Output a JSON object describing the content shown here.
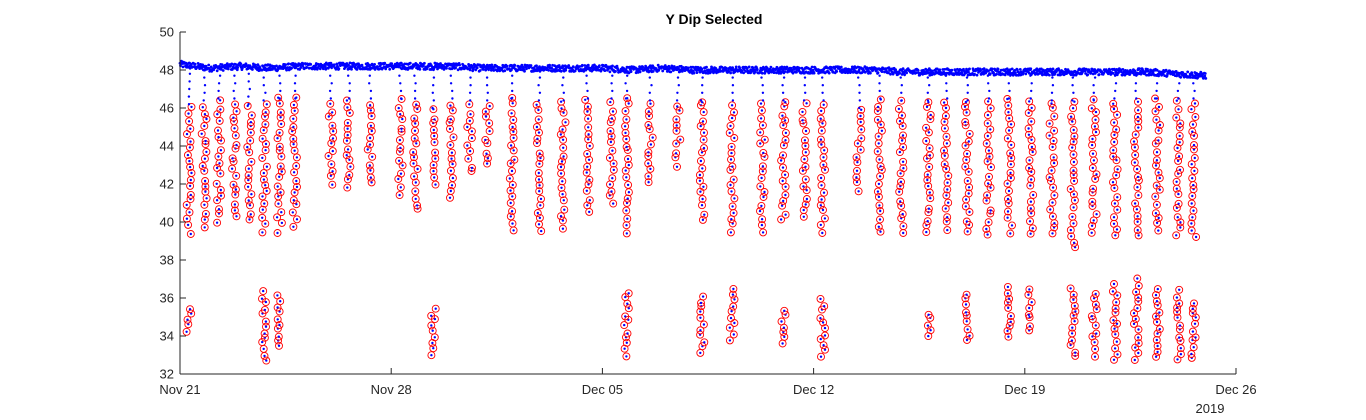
{
  "chart_data": {
    "type": "scatter",
    "title": "Y Dip Selected",
    "xlabel": "",
    "ylabel": "",
    "x_start": "2019-11-21",
    "x_end": "2019-12-26",
    "xlim": [
      "2019-11-21",
      "2019-12-26"
    ],
    "ylim": [
      32,
      50
    ],
    "grid": false,
    "x_ticks": [
      {
        "date": "2019-11-21",
        "label": "Nov 21"
      },
      {
        "date": "2019-11-28",
        "label": "Nov 28"
      },
      {
        "date": "2019-12-05",
        "label": "Dec 05"
      },
      {
        "date": "2019-12-12",
        "label": "Dec 12"
      },
      {
        "date": "2019-12-19",
        "label": "Dec 19"
      },
      {
        "date": "2019-12-26",
        "label": "Dec 26"
      }
    ],
    "x_secondary_label": "2019",
    "y_ticks": [
      32,
      34,
      36,
      38,
      40,
      42,
      44,
      46,
      48,
      50
    ],
    "series": [
      {
        "marker": "point",
        "color": "#0000ff",
        "baseline_points": [
          {
            "x": "2019-11-21",
            "y": 48.3
          },
          {
            "x": "2019-11-22",
            "y": 48.1
          },
          {
            "x": "2019-11-23",
            "y": 48.2
          },
          {
            "x": "2019-11-24",
            "y": 48.1
          },
          {
            "x": "2019-11-25",
            "y": 48.2
          },
          {
            "x": "2019-11-26",
            "y": 48.2
          },
          {
            "x": "2019-11-27",
            "y": 48.2
          },
          {
            "x": "2019-11-28",
            "y": 48.2
          },
          {
            "x": "2019-11-29",
            "y": 48.2
          },
          {
            "x": "2019-11-30",
            "y": 48.2
          },
          {
            "x": "2019-12-01",
            "y": 48.1
          },
          {
            "x": "2019-12-02",
            "y": 48.1
          },
          {
            "x": "2019-12-03",
            "y": 48.1
          },
          {
            "x": "2019-12-04",
            "y": 48.1
          },
          {
            "x": "2019-12-05",
            "y": 48.1
          },
          {
            "x": "2019-12-06",
            "y": 48.0
          },
          {
            "x": "2019-12-07",
            "y": 48.1
          },
          {
            "x": "2019-12-08",
            "y": 48.0
          },
          {
            "x": "2019-12-09",
            "y": 48.0
          },
          {
            "x": "2019-12-10",
            "y": 48.0
          },
          {
            "x": "2019-12-11",
            "y": 48.0
          },
          {
            "x": "2019-12-12",
            "y": 48.0
          },
          {
            "x": "2019-12-13",
            "y": 48.0
          },
          {
            "x": "2019-12-14",
            "y": 48.0
          },
          {
            "x": "2019-12-15",
            "y": 47.9
          },
          {
            "x": "2019-12-16",
            "y": 47.9
          },
          {
            "x": "2019-12-17",
            "y": 47.9
          },
          {
            "x": "2019-12-18",
            "y": 47.9
          },
          {
            "x": "2019-12-19",
            "y": 47.9
          },
          {
            "x": "2019-12-20",
            "y": 47.9
          },
          {
            "x": "2019-12-21",
            "y": 47.9
          },
          {
            "x": "2019-12-22",
            "y": 47.9
          },
          {
            "x": "2019-12-23",
            "y": 47.9
          },
          {
            "x": "2019-12-24",
            "y": 47.8
          },
          {
            "x": "2019-12-25",
            "y": 47.7
          }
        ]
      },
      {
        "marker": "open-circle",
        "color": "#ff0000",
        "dip_columns": [
          {
            "x": "2019-11-21.3",
            "y_min": 39.4,
            "y_max": 46.2,
            "low_min": 34.3,
            "low_max": 35.7
          },
          {
            "x": "2019-11-21.8",
            "y_min": 39.8,
            "y_max": 46.4
          },
          {
            "x": "2019-11-22.3",
            "y_min": 40.0,
            "y_max": 46.5
          },
          {
            "x": "2019-11-22.8",
            "y_min": 40.3,
            "y_max": 46.5
          },
          {
            "x": "2019-11-23.3",
            "y_min": 40.1,
            "y_max": 46.2
          },
          {
            "x": "2019-11-23.8",
            "y_min": 39.5,
            "y_max": 46.4,
            "low_min": 32.7,
            "low_max": 36.4
          },
          {
            "x": "2019-11-24.3",
            "y_min": 39.5,
            "y_max": 46.5,
            "low_min": 33.4,
            "low_max": 36.2
          },
          {
            "x": "2019-11-24.8",
            "y_min": 39.8,
            "y_max": 46.5
          },
          {
            "x": "2019-11-26.0",
            "y_min": 42.0,
            "y_max": 46.5
          },
          {
            "x": "2019-11-26.6",
            "y_min": 41.8,
            "y_max": 46.5
          },
          {
            "x": "2019-11-27.3",
            "y_min": 42.0,
            "y_max": 46.5
          },
          {
            "x": "2019-11-28.3",
            "y_min": 41.5,
            "y_max": 46.5
          },
          {
            "x": "2019-11-28.8",
            "y_min": 40.6,
            "y_max": 46.5
          },
          {
            "x": "2019-11-29.4",
            "y_min": 42.0,
            "y_max": 46.0,
            "low_min": 33.0,
            "low_max": 35.6
          },
          {
            "x": "2019-11-30.0",
            "y_min": 41.3,
            "y_max": 46.5
          },
          {
            "x": "2019-11-30.6",
            "y_min": 42.6,
            "y_max": 46.4
          },
          {
            "x": "2019-12-01.2",
            "y_min": 43.0,
            "y_max": 46.4
          },
          {
            "x": "2019-12-02.0",
            "y_min": 39.5,
            "y_max": 46.5
          },
          {
            "x": "2019-12-02.9",
            "y_min": 39.5,
            "y_max": 46.4
          },
          {
            "x": "2019-12-03.7",
            "y_min": 39.7,
            "y_max": 46.4
          },
          {
            "x": "2019-12-04.5",
            "y_min": 40.5,
            "y_max": 46.5
          },
          {
            "x": "2019-12-05.3",
            "y_min": 41.0,
            "y_max": 46.5
          },
          {
            "x": "2019-12-05.8",
            "y_min": 39.5,
            "y_max": 46.5,
            "low_min": 33.0,
            "low_max": 36.3
          },
          {
            "x": "2019-12-06.6",
            "y_min": 42.0,
            "y_max": 46.4
          },
          {
            "x": "2019-12-07.5",
            "y_min": 43.0,
            "y_max": 46.4
          },
          {
            "x": "2019-12-08.3",
            "y_min": 40.1,
            "y_max": 46.4,
            "low_min": 33.1,
            "low_max": 36.2
          },
          {
            "x": "2019-12-09.3",
            "y_min": 39.5,
            "y_max": 46.4,
            "low_min": 33.8,
            "low_max": 36.5
          },
          {
            "x": "2019-12-10.3",
            "y_min": 39.5,
            "y_max": 46.4
          },
          {
            "x": "2019-12-11.0",
            "y_min": 40.1,
            "y_max": 46.4,
            "low_min": 33.6,
            "low_max": 35.5
          },
          {
            "x": "2019-12-11.7",
            "y_min": 40.2,
            "y_max": 46.4
          },
          {
            "x": "2019-12-12.3",
            "y_min": 39.5,
            "y_max": 46.4,
            "low_min": 32.9,
            "low_max": 35.9
          },
          {
            "x": "2019-12-13.5",
            "y_min": 41.7,
            "y_max": 46.0
          },
          {
            "x": "2019-12-14.2",
            "y_min": 39.5,
            "y_max": 46.5
          },
          {
            "x": "2019-12-14.9",
            "y_min": 39.4,
            "y_max": 46.4
          },
          {
            "x": "2019-12-15.8",
            "y_min": 39.4,
            "y_max": 46.4,
            "low_min": 34.0,
            "low_max": 35.3
          },
          {
            "x": "2019-12-16.4",
            "y_min": 39.6,
            "y_max": 46.5
          },
          {
            "x": "2019-12-17.1",
            "y_min": 39.4,
            "y_max": 46.4,
            "low_min": 33.8,
            "low_max": 36.3
          },
          {
            "x": "2019-12-17.8",
            "y_min": 39.3,
            "y_max": 46.5
          },
          {
            "x": "2019-12-18.5",
            "y_min": 39.5,
            "y_max": 46.5,
            "low_min": 33.9,
            "low_max": 36.7
          },
          {
            "x": "2019-12-19.2",
            "y_min": 39.4,
            "y_max": 46.5,
            "low_min": 34.3,
            "low_max": 36.4
          },
          {
            "x": "2019-12-19.9",
            "y_min": 39.3,
            "y_max": 46.4
          },
          {
            "x": "2019-12-20.6",
            "y_min": 38.6,
            "y_max": 46.4,
            "low_min": 32.9,
            "low_max": 36.7
          },
          {
            "x": "2019-12-21.3",
            "y_min": 39.4,
            "y_max": 46.4,
            "low_min": 33.0,
            "low_max": 36.4
          },
          {
            "x": "2019-12-22.0",
            "y_min": 39.3,
            "y_max": 46.5,
            "low_min": 32.8,
            "low_max": 36.7
          },
          {
            "x": "2019-12-22.7",
            "y_min": 39.3,
            "y_max": 46.5,
            "low_min": 32.8,
            "low_max": 37.0
          },
          {
            "x": "2019-12-23.4",
            "y_min": 39.5,
            "y_max": 46.5,
            "low_min": 32.9,
            "low_max": 36.7
          },
          {
            "x": "2019-12-24.1",
            "y_min": 39.3,
            "y_max": 46.5,
            "low_min": 32.8,
            "low_max": 36.4
          },
          {
            "x": "2019-12-24.6",
            "y_min": 39.2,
            "y_max": 46.5,
            "low_min": 32.8,
            "low_max": 35.8
          }
        ]
      }
    ]
  }
}
